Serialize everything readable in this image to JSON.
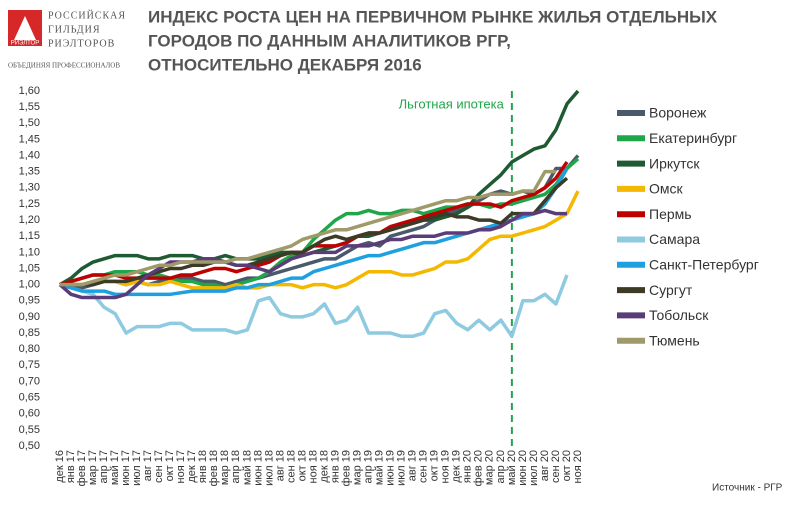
{
  "logo": {
    "icon": "РИЭЛТОР",
    "lines": [
      "РОССИЙСКАЯ",
      "ГИЛЬДИЯ",
      "РИЭЛТОРОВ"
    ],
    "tagline": "ОБЪЕДИНЯЯ ПРОФЕССИОНАЛОВ"
  },
  "chart_data": {
    "type": "line",
    "title": [
      "ИНДЕКС РОСТА ЦЕН НА ПЕРВИЧНОМ РЫНКЕ ЖИЛЬЯ ОТДЕЛЬНЫХ",
      "ГОРОДОВ ПО ДАННЫМ АНАЛИТИКОВ РГР,",
      "ОТНОСИТЕЛЬНО ДЕКАБРЯ 2016"
    ],
    "source": "Источник - РГР",
    "annotations": [
      {
        "text": "Льготная ипотека",
        "x": "май 20",
        "color": "#1fa64a"
      }
    ],
    "categories": [
      "дек 16",
      "янв 17",
      "фев 17",
      "мар 17",
      "апр 17",
      "май 17",
      "июн 17",
      "июл 17",
      "авг 17",
      "сен 17",
      "окт 17",
      "ноя 17",
      "дек 17",
      "янв 18",
      "фев 18",
      "мар 18",
      "апр 18",
      "май 18",
      "июн 18",
      "июл 18",
      "авг 18",
      "сен 18",
      "окт 18",
      "ноя 18",
      "дек 18",
      "янв 19",
      "фев 19",
      "мар 19",
      "апр 19",
      "май 19",
      "июн 19",
      "июл 19",
      "авг 19",
      "сен 19",
      "окт 19",
      "ноя 19",
      "дек 19",
      "янв 20",
      "фев 20",
      "мар 20",
      "апр 20",
      "май 20",
      "июн 20",
      "июл 20",
      "авг 20",
      "сен 20",
      "окт 20",
      "ноя 20"
    ],
    "ylim": [
      0.5,
      1.6
    ],
    "yticks": [
      {
        "value": 0.5,
        "label": "0,50"
      },
      {
        "value": 0.55,
        "label": "0,55"
      },
      {
        "value": 0.6,
        "label": "0,60"
      },
      {
        "value": 0.65,
        "label": "0,65"
      },
      {
        "value": 0.7,
        "label": "0,70"
      },
      {
        "value": 0.75,
        "label": "0,75"
      },
      {
        "value": 0.8,
        "label": "0,80"
      },
      {
        "value": 0.85,
        "label": "0,85"
      },
      {
        "value": 0.9,
        "label": "0,90"
      },
      {
        "value": 0.95,
        "label": "0,95"
      },
      {
        "value": 1.0,
        "label": "1,00"
      },
      {
        "value": 1.05,
        "label": "1,05"
      },
      {
        "value": 1.1,
        "label": "1,10"
      },
      {
        "value": 1.15,
        "label": "1,15"
      },
      {
        "value": 1.2,
        "label": "1,20"
      },
      {
        "value": 1.25,
        "label": "1,25"
      },
      {
        "value": 1.3,
        "label": "1,30"
      },
      {
        "value": 1.35,
        "label": "1,35"
      },
      {
        "value": 1.4,
        "label": "1,40"
      },
      {
        "value": 1.45,
        "label": "1,45"
      },
      {
        "value": 1.5,
        "label": "1,50"
      },
      {
        "value": 1.55,
        "label": "1,55"
      },
      {
        "value": 1.6,
        "label": "1,60"
      }
    ],
    "grid": false,
    "series": [
      {
        "name": "Воронеж",
        "color": "#4a5a6a",
        "values": [
          1.0,
          1.0,
          0.99,
          1.0,
          1.01,
          1.01,
          1.0,
          1.01,
          1.0,
          1.01,
          1.02,
          1.02,
          1.02,
          1.01,
          1.01,
          1.0,
          1.01,
          1.02,
          1.02,
          1.03,
          1.04,
          1.05,
          1.06,
          1.07,
          1.08,
          1.08,
          1.1,
          1.12,
          1.13,
          1.12,
          1.15,
          1.16,
          1.17,
          1.18,
          1.2,
          1.22,
          1.23,
          1.24,
          1.26,
          1.28,
          1.29,
          1.28,
          1.29,
          1.28,
          1.3,
          1.36,
          1.36,
          1.4
        ]
      },
      {
        "name": "Екатеринбург",
        "color": "#1fa64a",
        "values": [
          1.0,
          1.01,
          1.02,
          1.03,
          1.03,
          1.04,
          1.04,
          1.04,
          1.03,
          1.03,
          1.02,
          1.01,
          1.01,
          1.0,
          1.0,
          0.99,
          1.0,
          1.01,
          1.02,
          1.04,
          1.07,
          1.09,
          1.1,
          1.14,
          1.17,
          1.2,
          1.22,
          1.22,
          1.23,
          1.22,
          1.22,
          1.23,
          1.23,
          1.22,
          1.23,
          1.24,
          1.24,
          1.25,
          1.25,
          1.24,
          1.25,
          1.25,
          1.26,
          1.27,
          1.28,
          1.31,
          1.36,
          1.39
        ]
      },
      {
        "name": "Иркутск",
        "color": "#1e5a32",
        "values": [
          1.0,
          1.02,
          1.05,
          1.07,
          1.08,
          1.09,
          1.09,
          1.09,
          1.08,
          1.08,
          1.09,
          1.09,
          1.09,
          1.08,
          1.08,
          1.09,
          1.08,
          1.08,
          1.08,
          1.09,
          1.1,
          1.1,
          1.09,
          1.1,
          1.11,
          1.12,
          1.13,
          1.15,
          1.15,
          1.16,
          1.17,
          1.18,
          1.19,
          1.2,
          1.2,
          1.21,
          1.22,
          1.24,
          1.28,
          1.31,
          1.34,
          1.38,
          1.4,
          1.42,
          1.43,
          1.48,
          1.56,
          1.6
        ]
      },
      {
        "name": "Омск",
        "color": "#f5b800",
        "values": [
          1.0,
          1.0,
          1.0,
          1.01,
          1.01,
          1.01,
          1.0,
          1.01,
          1.0,
          1.0,
          1.01,
          1.0,
          0.99,
          0.99,
          0.99,
          0.99,
          1.0,
          0.99,
          0.99,
          1.0,
          1.0,
          1.0,
          0.99,
          1.0,
          1.0,
          0.99,
          1.0,
          1.02,
          1.04,
          1.04,
          1.04,
          1.03,
          1.03,
          1.04,
          1.05,
          1.07,
          1.07,
          1.08,
          1.11,
          1.14,
          1.15,
          1.15,
          1.16,
          1.17,
          1.18,
          1.2,
          1.22,
          1.29
        ]
      },
      {
        "name": "Пермь",
        "color": "#c00000",
        "values": [
          1.0,
          1.01,
          1.02,
          1.03,
          1.03,
          1.03,
          1.02,
          1.02,
          1.02,
          1.02,
          1.02,
          1.03,
          1.03,
          1.04,
          1.05,
          1.05,
          1.04,
          1.05,
          1.06,
          1.07,
          1.09,
          1.1,
          1.1,
          1.12,
          1.12,
          1.12,
          1.13,
          1.15,
          1.16,
          1.16,
          1.18,
          1.19,
          1.2,
          1.21,
          1.22,
          1.23,
          1.24,
          1.25,
          1.25,
          1.25,
          1.24,
          1.26,
          1.27,
          1.28,
          1.3,
          1.33,
          1.38,
          null
        ]
      },
      {
        "name": "Самара",
        "color": "#8ecae0",
        "values": [
          1.0,
          0.99,
          0.98,
          0.97,
          0.93,
          0.91,
          0.85,
          0.87,
          0.87,
          0.87,
          0.88,
          0.88,
          0.86,
          0.86,
          0.86,
          0.86,
          0.85,
          0.86,
          0.95,
          0.96,
          0.91,
          0.9,
          0.9,
          0.91,
          0.94,
          0.88,
          0.89,
          0.93,
          0.85,
          0.85,
          0.85,
          0.84,
          0.84,
          0.85,
          0.91,
          0.92,
          0.88,
          0.86,
          0.89,
          0.86,
          0.89,
          0.84,
          0.95,
          0.95,
          0.97,
          0.94,
          1.03,
          null
        ]
      },
      {
        "name": "Санкт-Петербург",
        "color": "#1ea0e0",
        "values": [
          1.0,
          0.99,
          0.98,
          0.98,
          0.98,
          0.97,
          0.97,
          0.97,
          0.97,
          0.97,
          0.97,
          0.975,
          0.98,
          0.98,
          0.98,
          0.98,
          0.99,
          0.99,
          1.0,
          1.0,
          1.01,
          1.02,
          1.02,
          1.04,
          1.05,
          1.06,
          1.07,
          1.08,
          1.09,
          1.09,
          1.1,
          1.11,
          1.12,
          1.13,
          1.13,
          1.14,
          1.15,
          1.16,
          1.17,
          1.18,
          1.19,
          1.2,
          1.21,
          1.22,
          1.25,
          1.3,
          1.36,
          null
        ]
      },
      {
        "name": "Сургут",
        "color": "#3d3a26",
        "values": [
          1.0,
          1.0,
          1.0,
          1.0,
          1.01,
          1.01,
          1.01,
          1.02,
          1.03,
          1.04,
          1.05,
          1.05,
          1.06,
          1.06,
          1.07,
          1.07,
          1.06,
          1.06,
          1.07,
          1.08,
          1.09,
          1.1,
          1.1,
          1.12,
          1.14,
          1.15,
          1.14,
          1.15,
          1.16,
          1.16,
          1.17,
          1.18,
          1.19,
          1.2,
          1.21,
          1.22,
          1.21,
          1.21,
          1.2,
          1.2,
          1.19,
          1.22,
          1.22,
          1.22,
          1.26,
          1.3,
          1.33,
          null
        ]
      },
      {
        "name": "Тобольск",
        "color": "#5a3c78",
        "values": [
          1.0,
          0.97,
          0.96,
          0.96,
          0.96,
          0.96,
          0.97,
          1.0,
          1.03,
          1.05,
          1.07,
          1.07,
          1.07,
          1.08,
          1.08,
          1.07,
          1.06,
          1.06,
          1.05,
          1.04,
          1.06,
          1.08,
          1.09,
          1.1,
          1.1,
          1.1,
          1.12,
          1.12,
          1.12,
          1.13,
          1.14,
          1.14,
          1.15,
          1.15,
          1.15,
          1.16,
          1.16,
          1.16,
          1.17,
          1.17,
          1.18,
          1.2,
          1.22,
          1.22,
          1.23,
          1.22,
          1.22,
          null
        ]
      },
      {
        "name": "Тюмень",
        "color": "#a09a6a",
        "values": [
          1.0,
          1.0,
          1.0,
          1.01,
          1.02,
          1.03,
          1.03,
          1.04,
          1.05,
          1.06,
          1.06,
          1.07,
          1.07,
          1.07,
          1.07,
          1.07,
          1.08,
          1.08,
          1.09,
          1.1,
          1.11,
          1.12,
          1.14,
          1.15,
          1.16,
          1.17,
          1.17,
          1.18,
          1.19,
          1.2,
          1.21,
          1.22,
          1.23,
          1.24,
          1.25,
          1.26,
          1.26,
          1.27,
          1.27,
          1.28,
          1.28,
          1.28,
          1.29,
          1.29,
          1.35,
          1.35,
          null,
          null
        ]
      }
    ]
  }
}
